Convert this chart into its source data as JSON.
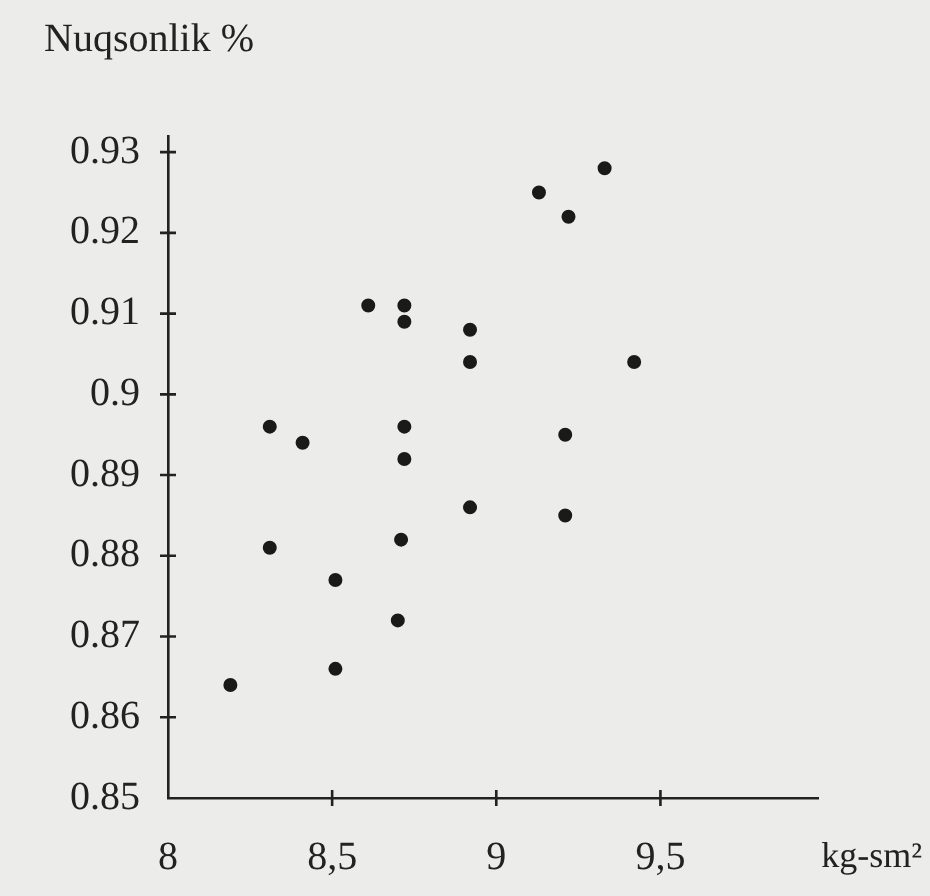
{
  "chart_data": {
    "type": "scatter",
    "xlabel": "kg-sm²",
    "ylabel": "Nuqsonlik %",
    "xlim": [
      8,
      9.98
    ],
    "ylim": [
      0.85,
      0.932
    ],
    "xticks": [
      8,
      {
        "value": 8.5,
        "label": "8,5"
      },
      9,
      {
        "value": 9.5,
        "label": "9,5"
      }
    ],
    "yticks": [
      0.85,
      0.86,
      0.87,
      0.88,
      0.89,
      0.9,
      0.91,
      0.92,
      0.93
    ],
    "grid": false,
    "legend": false,
    "marker": "circle",
    "series": [
      {
        "color": "#1a1a1a",
        "x": [
          8.31,
          8.41,
          8.61,
          8.72,
          8.72,
          8.92,
          8.92,
          9.13,
          9.22,
          9.33,
          9.42,
          9.21,
          8.72,
          8.72,
          8.92,
          9.21,
          8.31,
          8.71,
          8.51,
          8.7,
          8.51,
          8.19
        ],
        "values": [
          0.896,
          0.894,
          0.911,
          0.911,
          0.909,
          0.908,
          0.904,
          0.925,
          0.922,
          0.928,
          0.904,
          0.895,
          0.896,
          0.892,
          0.886,
          0.885,
          0.881,
          0.882,
          0.877,
          0.872,
          0.866,
          0.864
        ]
      }
    ]
  }
}
